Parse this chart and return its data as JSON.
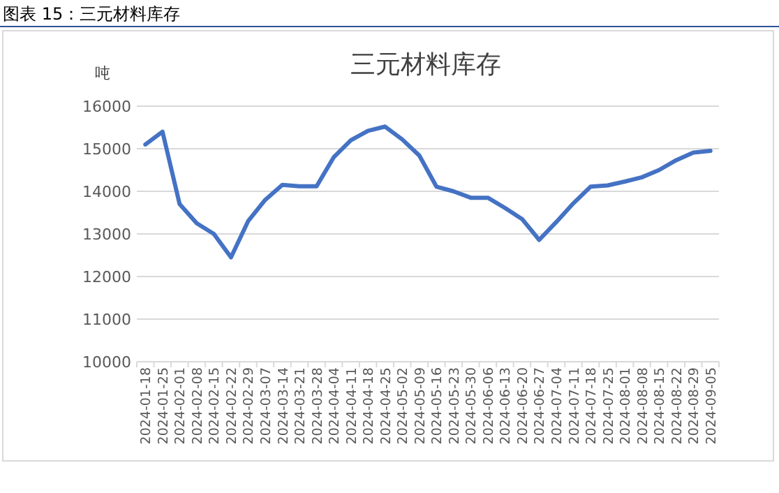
{
  "chart_data": {
    "type": "line",
    "title": "图表 15：三元材料库存",
    "subtitle": "三元材料库存",
    "ylabel": "吨",
    "categories": [
      "2024-01-18",
      "2024-01-25",
      "2024-02-01",
      "2024-02-08",
      "2024-02-15",
      "2024-02-22",
      "2024-02-29",
      "2024-03-07",
      "2024-03-14",
      "2024-03-21",
      "2024-03-28",
      "2024-04-04",
      "2024-04-11",
      "2024-04-18",
      "2024-04-25",
      "2024-05-02",
      "2024-05-09",
      "2024-05-16",
      "2024-05-23",
      "2024-05-30",
      "2024-06-06",
      "2024-06-13",
      "2024-06-20",
      "2024-06-27",
      "2024-07-04",
      "2024-07-11",
      "2024-07-18",
      "2024-07-25",
      "2024-08-01",
      "2024-08-08",
      "2024-08-15",
      "2024-08-22",
      "2024-08-29",
      "2024-09-05"
    ],
    "series": [
      {
        "color": "#4472c4",
        "values": [
          15100,
          15400,
          13700,
          13250,
          13000,
          12450,
          13300,
          13800,
          14150,
          14120,
          14120,
          14800,
          15200,
          15420,
          15520,
          15220,
          14840,
          14110,
          14000,
          13850,
          13850,
          13610,
          13350,
          12860,
          13280,
          13720,
          14110,
          14140,
          14230,
          14330,
          14500,
          14730,
          14910,
          14950
        ]
      }
    ],
    "ylim": [
      10000,
      16000
    ],
    "yticks": [
      10000,
      11000,
      12000,
      13000,
      14000,
      15000,
      16000
    ],
    "grid": "y",
    "marker": "none",
    "line_style": "solid"
  }
}
